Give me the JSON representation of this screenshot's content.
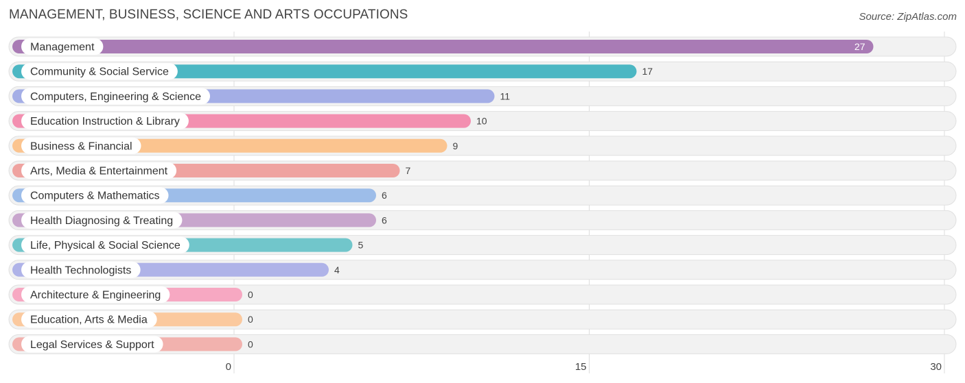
{
  "chart_data": {
    "type": "bar",
    "orientation": "horizontal",
    "title": "MANAGEMENT, BUSINESS, SCIENCE AND ARTS OCCUPATIONS",
    "source": "Source: ZipAtlas.com",
    "xlim": [
      0,
      30
    ],
    "ticks": [
      0,
      15,
      30
    ],
    "categories": [
      "Management",
      "Community & Social Service",
      "Computers, Engineering & Science",
      "Education Instruction & Library",
      "Business & Financial",
      "Arts, Media & Entertainment",
      "Computers & Mathematics",
      "Health Diagnosing & Treating",
      "Life, Physical & Social Science",
      "Health Technologists",
      "Architecture & Engineering",
      "Education, Arts & Media",
      "Legal Services & Support"
    ],
    "values": [
      27,
      17,
      11,
      10,
      9,
      7,
      6,
      6,
      5,
      4,
      0,
      0,
      0
    ],
    "colors": [
      "#a97bb5",
      "#4cb7c3",
      "#a4aee6",
      "#f38fb0",
      "#fbc48f",
      "#ef a3a0",
      "#9dbde9",
      "#c8a6cd",
      "#71c6cb",
      "#afb3e8",
      "#f7a8c2",
      "#fbc99e",
      "#f2b2ae"
    ]
  }
}
